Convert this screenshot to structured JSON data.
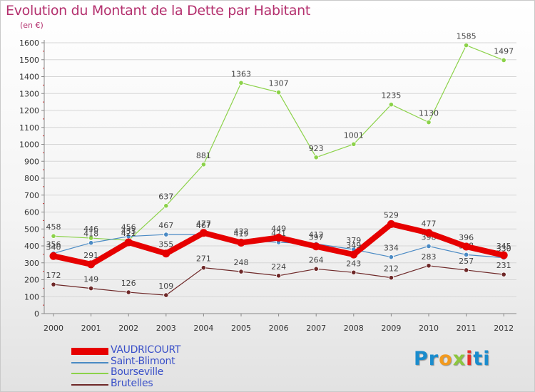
{
  "chart_data": {
    "type": "line",
    "title": "Evolution du Montant de la Dette par Habitant",
    "subtitle": "(en €)",
    "x": [
      "2000",
      "2001",
      "2002",
      "2003",
      "2004",
      "2005",
      "2006",
      "2007",
      "2008",
      "2009",
      "2010",
      "2011",
      "2012"
    ],
    "ylim": [
      0,
      1600
    ],
    "yticks": [
      0,
      100,
      200,
      300,
      400,
      500,
      600,
      700,
      800,
      900,
      1000,
      1100,
      1200,
      1300,
      1400,
      1500,
      1600
    ],
    "grid": true,
    "series": [
      {
        "name": "VAUDRICOURT",
        "color": "#e60000",
        "values": [
          340,
          291,
          421,
          355,
          477,
          419,
          449,
          397,
          349,
          529,
          477,
          396,
          345
        ]
      },
      {
        "name": "Saint-Blimont",
        "color": "#4a8ac4",
        "values": [
          356,
          418,
          456,
          467,
          467,
          432,
          421,
          412,
          379,
          334,
          398,
          348,
          330
        ]
      },
      {
        "name": "Bourseville",
        "color": "#8cd24a",
        "values": [
          458,
          446,
          433,
          637,
          881,
          1363,
          1307,
          923,
          1001,
          1235,
          1130,
          1585,
          1497
        ]
      },
      {
        "name": "Brutelles",
        "color": "#6e2828",
        "values": [
          172,
          149,
          126,
          109,
          271,
          248,
          224,
          264,
          243,
          212,
          283,
          257,
          231
        ]
      }
    ]
  },
  "logo": {
    "letters": [
      {
        "ch": "P",
        "color": "#1a8ccd"
      },
      {
        "ch": "r",
        "color": "#1a8ccd"
      },
      {
        "ch": "o",
        "color": "#f29a1f"
      },
      {
        "ch": "x",
        "color": "#8cc63f"
      },
      {
        "ch": "i",
        "color": "#e8302a"
      },
      {
        "ch": "t",
        "color": "#1a8ccd"
      },
      {
        "ch": "i",
        "color": "#1a8ccd"
      }
    ]
  }
}
